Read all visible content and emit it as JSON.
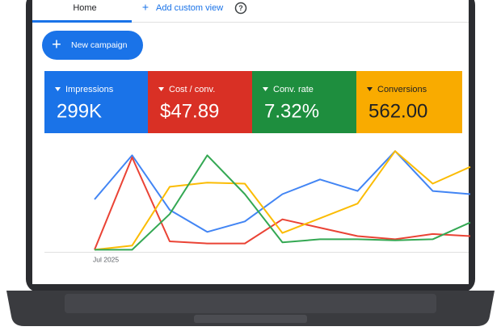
{
  "tabs": {
    "home": "Home",
    "add_view": "Add custom view"
  },
  "button": {
    "label": "New campaign"
  },
  "cards": [
    {
      "label": "Impressions",
      "value": "299K",
      "color": "#1a73e8",
      "text_color": "#ffffff"
    },
    {
      "label": "Cost / conv.",
      "value": "$47.89",
      "color": "#d93025",
      "text_color": "#ffffff"
    },
    {
      "label": "Conv. rate",
      "value": "7.32%",
      "color": "#1e8e3e",
      "text_color": "#ffffff"
    },
    {
      "label": "Conversions",
      "value": "562.00",
      "color": "#f9ab00",
      "text_color": "#202124"
    }
  ],
  "chart_data": {
    "type": "line",
    "categories": [
      "Jul 2025",
      null,
      null,
      null,
      null,
      null,
      null,
      null,
      null,
      null,
      null
    ],
    "ylim": [
      0,
      100
    ],
    "series": [
      {
        "color": "#4285f4",
        "values": [
          50,
          92,
          40,
          19,
          29,
          55,
          69,
          58,
          96,
          58,
          55
        ]
      },
      {
        "color": "#ea4335",
        "values": [
          2,
          90,
          10,
          8,
          8,
          31,
          23,
          15,
          12,
          17,
          15
        ]
      },
      {
        "color": "#fbbc04",
        "values": [
          2,
          6,
          62,
          66,
          65,
          18,
          32,
          46,
          96,
          65,
          81
        ]
      },
      {
        "color": "#34a853",
        "values": [
          2,
          2,
          36,
          92,
          55,
          9,
          12,
          12,
          11,
          12,
          28
        ]
      }
    ]
  }
}
